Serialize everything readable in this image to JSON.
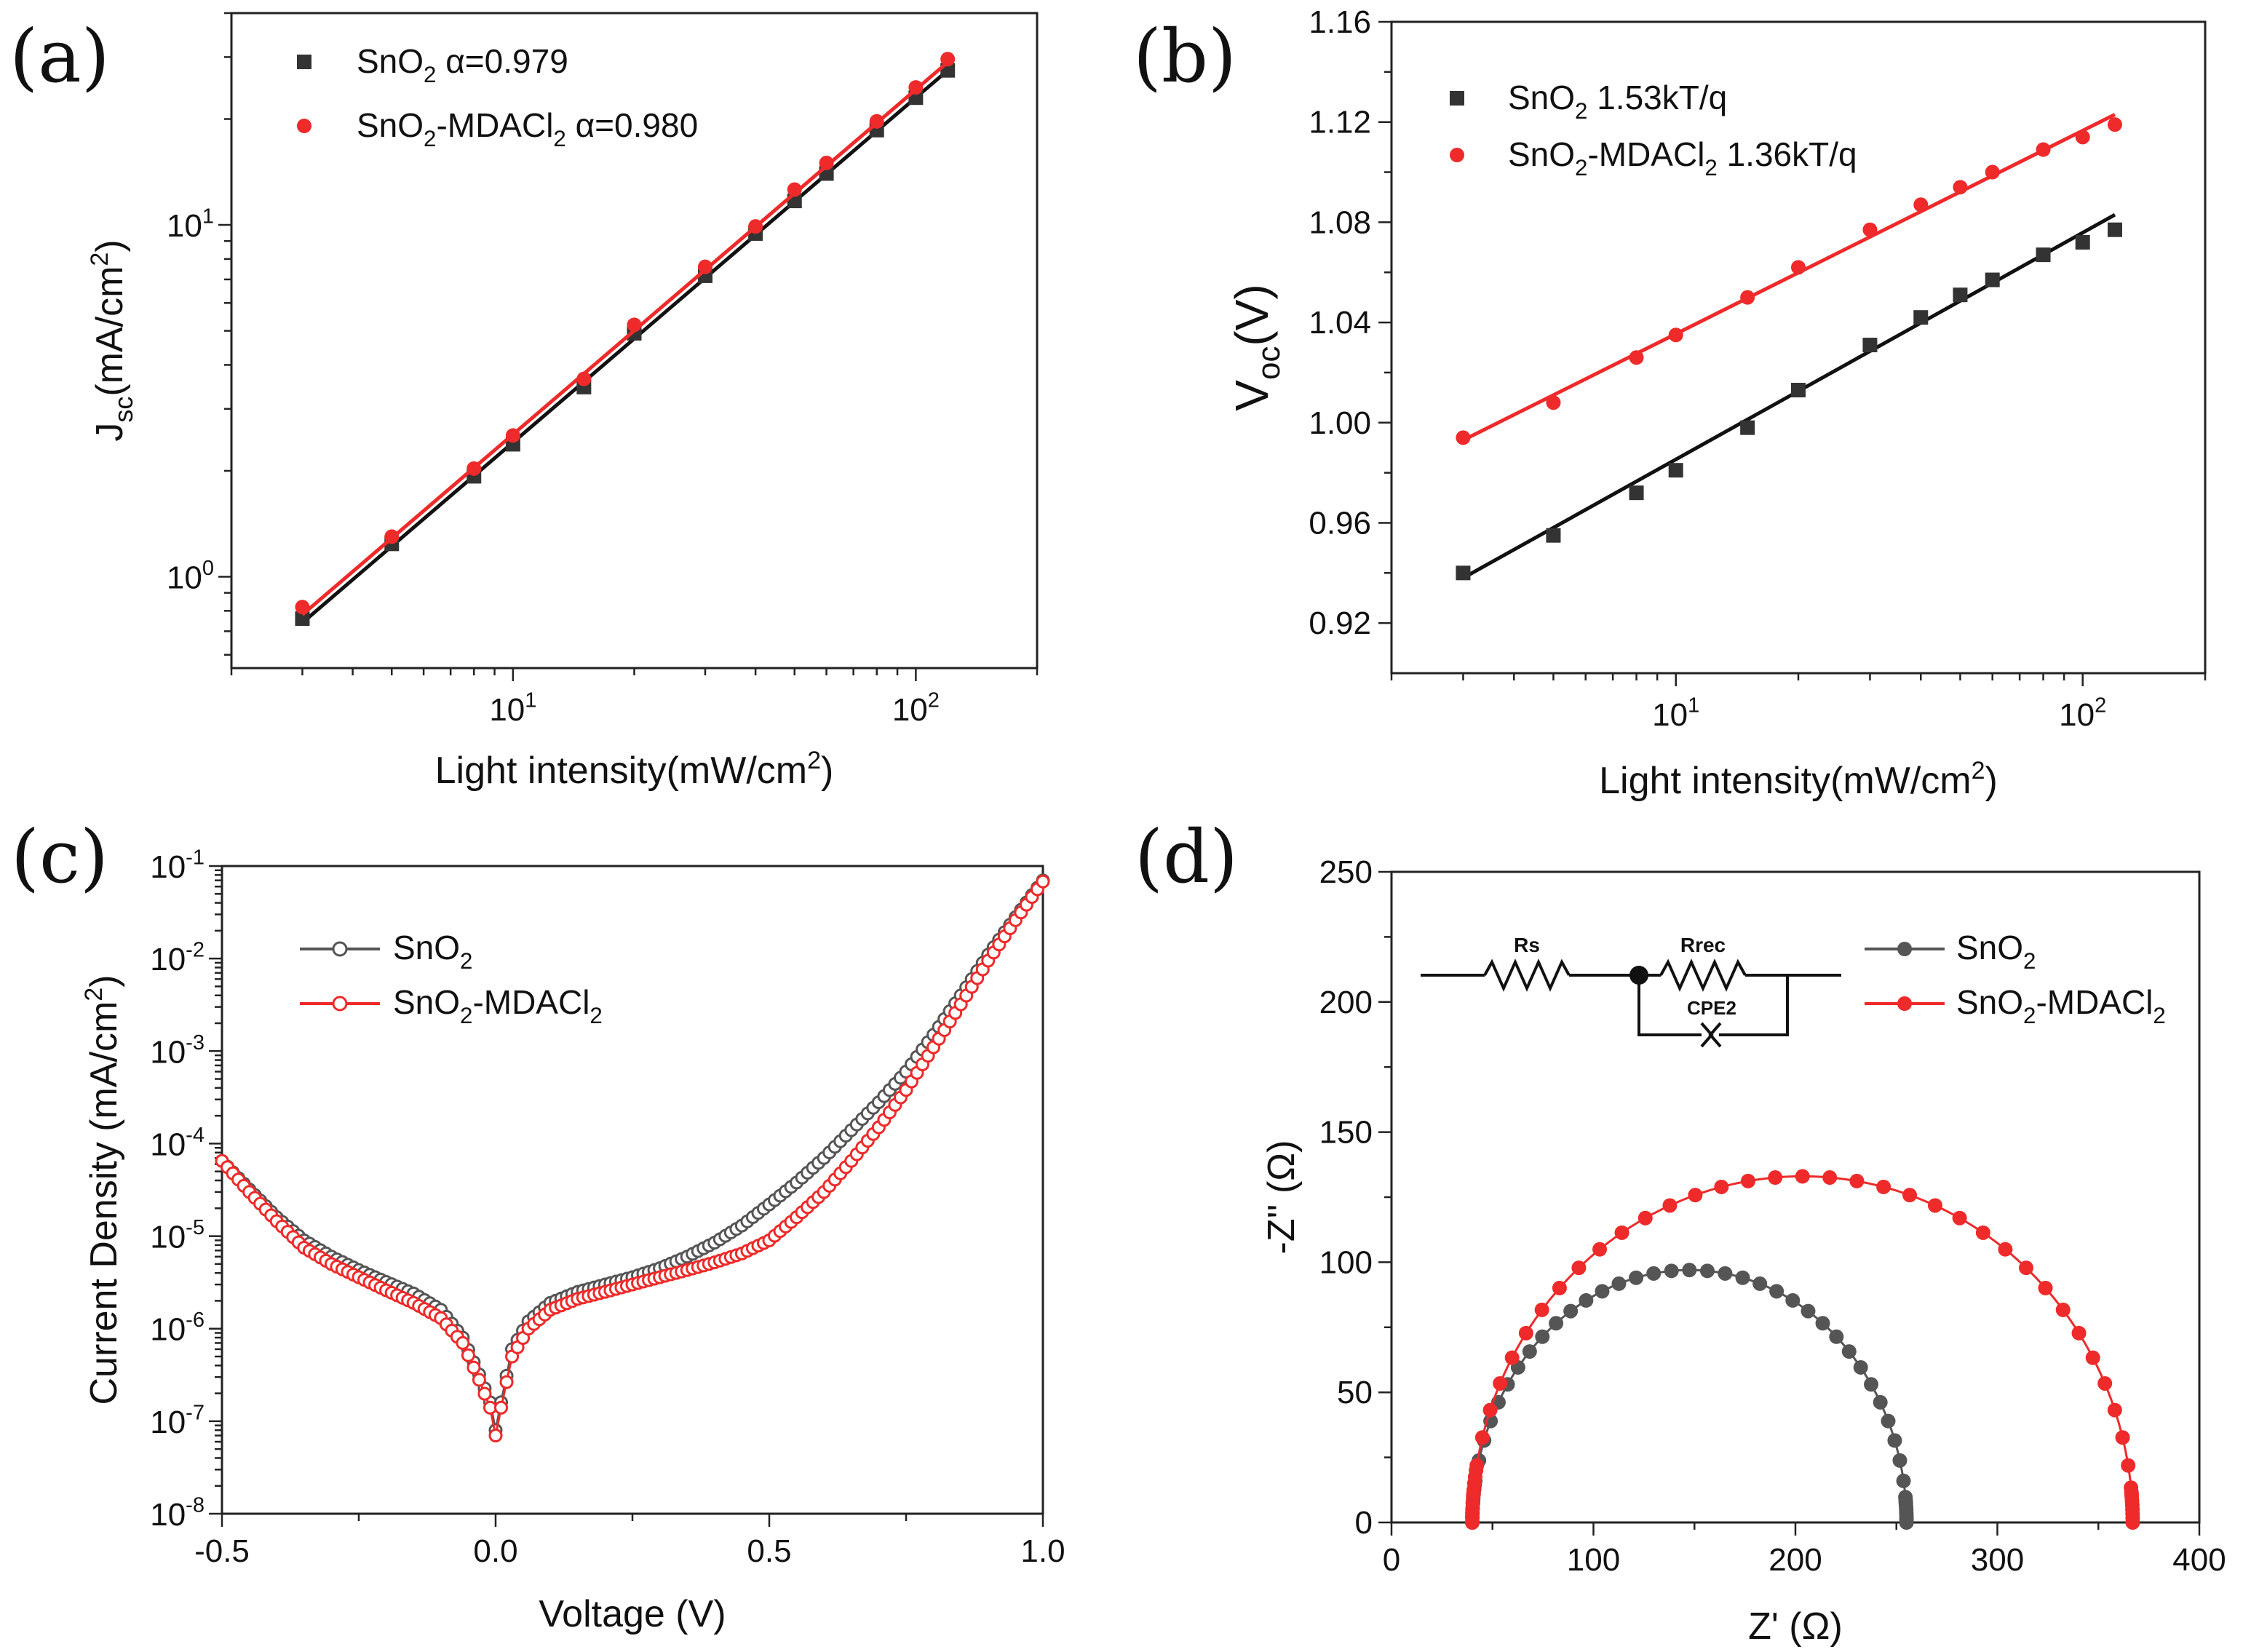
{
  "chart_data": [
    {
      "panel": "(a)",
      "type": "scatter",
      "xscale": "log",
      "yscale": "log",
      "xlabel": "Light intensity(mW/cm",
      "xlabel_sup": "2",
      "xlabel_end": ")",
      "ylabel": "J",
      "ylabel_sub": "sc",
      "ylabel_mid": "(mA/cm",
      "ylabel_sup": "2",
      "ylabel_end": ")",
      "xlim": [
        2,
        200
      ],
      "ylim": [
        0.55,
        40
      ],
      "xticks": [
        {
          "base": "10",
          "exp": "1",
          "value": 10
        },
        {
          "base": "10",
          "exp": "2",
          "value": 100
        }
      ],
      "yticks": [
        {
          "base": "10",
          "exp": "0",
          "value": 1
        },
        {
          "base": "10",
          "exp": "1",
          "value": 10
        }
      ],
      "series": [
        {
          "name": "SnO",
          "name_sub": "2",
          "name_tail": " α=0.979",
          "color": "#333333",
          "marker": "square",
          "x": [
            3,
            5,
            8,
            10,
            15,
            20,
            30,
            40,
            50,
            60,
            80,
            100,
            120
          ],
          "y": [
            0.76,
            1.24,
            1.93,
            2.38,
            3.46,
            4.92,
            7.17,
            9.45,
            11.7,
            14.0,
            18.6,
            23.0,
            27.5
          ],
          "fit": [
            [
              3,
              0.74
            ],
            [
              120,
              27.5
            ]
          ]
        },
        {
          "name": "SnO",
          "name_sub": "2",
          "name_tail": "-MDACl",
          "name_sub2": "2",
          "name_tail2": " α=0.980",
          "color": "#ee2a2a",
          "marker": "circle",
          "x": [
            3,
            5,
            8,
            10,
            15,
            20,
            30,
            40,
            50,
            60,
            80,
            100,
            120
          ],
          "y": [
            0.82,
            1.3,
            2.03,
            2.52,
            3.65,
            5.2,
            7.6,
            9.9,
            12.6,
            15.0,
            19.7,
            24.6,
            29.6
          ],
          "fit": [
            [
              3,
              0.78
            ],
            [
              120,
              29.0
            ]
          ]
        }
      ]
    },
    {
      "panel": "(b)",
      "type": "scatter",
      "xscale": "log",
      "yscale": "linear",
      "xlabel": "Light intensity(mW/cm",
      "xlabel_sup": "2",
      "xlabel_end": ")",
      "ylabel": "V",
      "ylabel_sub": "oc",
      "ylabel_end": "(V)",
      "xlim": [
        2,
        200
      ],
      "ylim": [
        0.9,
        1.16
      ],
      "xticks": [
        {
          "base": "10",
          "exp": "1",
          "value": 10
        },
        {
          "base": "10",
          "exp": "2",
          "value": 100
        }
      ],
      "yticks": [
        "0.92",
        "0.96",
        "1.00",
        "1.04",
        "1.08",
        "1.12",
        "1.16"
      ],
      "series": [
        {
          "name": "SnO",
          "name_sub": "2",
          "name_tail": " 1.53kT/q",
          "color": "#333333",
          "marker": "square",
          "x": [
            3,
            5,
            8,
            10,
            15,
            20,
            30,
            40,
            50,
            60,
            80,
            100,
            120
          ],
          "y": [
            0.94,
            0.955,
            0.972,
            0.981,
            0.998,
            1.013,
            1.031,
            1.042,
            1.051,
            1.057,
            1.067,
            1.072,
            1.077
          ],
          "fit": [
            [
              3,
              0.938
            ],
            [
              120,
              1.083
            ]
          ]
        },
        {
          "name": "SnO",
          "name_sub": "2",
          "name_tail": "-MDACl",
          "name_sub2": "2",
          "name_tail2": " 1.36kT/q",
          "color": "#ee2a2a",
          "marker": "circle",
          "x": [
            3,
            5,
            8,
            10,
            15,
            20,
            30,
            40,
            50,
            60,
            80,
            100,
            120
          ],
          "y": [
            0.994,
            1.008,
            1.026,
            1.035,
            1.05,
            1.062,
            1.077,
            1.087,
            1.094,
            1.1,
            1.109,
            1.114,
            1.119
          ],
          "fit": [
            [
              3,
              0.993
            ],
            [
              120,
              1.123
            ]
          ]
        }
      ]
    },
    {
      "panel": "(c)",
      "type": "line",
      "xscale": "linear",
      "yscale": "log",
      "xlabel": "Voltage (V)",
      "ylabel": "Current Density (mA/cm",
      "ylabel_sup": "2",
      "ylabel_end": ")",
      "xlim": [
        -0.5,
        1.0
      ],
      "ylim": [
        1e-08,
        0.1
      ],
      "xticks": [
        "-0.5",
        "0.0",
        "0.5",
        "1.0"
      ],
      "yticks": [
        {
          "base": "10",
          "exp": "-8",
          "value": 1e-08
        },
        {
          "base": "10",
          "exp": "-7",
          "value": 1e-07
        },
        {
          "base": "10",
          "exp": "-6",
          "value": 1e-06
        },
        {
          "base": "10",
          "exp": "-5",
          "value": 1e-05
        },
        {
          "base": "10",
          "exp": "-4",
          "value": 0.0001
        },
        {
          "base": "10",
          "exp": "-3",
          "value": 0.001
        },
        {
          "base": "10",
          "exp": "-2",
          "value": 0.01
        },
        {
          "base": "10",
          "exp": "-1",
          "value": 0.1
        }
      ],
      "series": [
        {
          "name": "SnO",
          "name_sub": "2",
          "color": "#555555",
          "marker": "circle-open",
          "x": [
            -0.5,
            -0.45,
            -0.4,
            -0.35,
            -0.3,
            -0.25,
            -0.2,
            -0.15,
            -0.1,
            -0.06,
            -0.03,
            -0.01,
            0.0,
            0.01,
            0.03,
            0.06,
            0.1,
            0.15,
            0.2,
            0.25,
            0.3,
            0.35,
            0.4,
            0.45,
            0.5,
            0.55,
            0.6,
            0.65,
            0.7,
            0.75,
            0.8,
            0.85,
            0.9,
            0.95,
            1.0
          ],
          "y": [
            6.5e-05,
            3.2e-05,
            1.6e-05,
            9e-06,
            6e-06,
            4.3e-06,
            3.2e-06,
            2.4e-06,
            1.6e-06,
            8e-07,
            3.2e-07,
            1.6e-07,
            8e-08,
            1.6e-07,
            6e-07,
            1.2e-06,
            1.9e-06,
            2.5e-06,
            3e-06,
            3.6e-06,
            4.5e-06,
            6e-06,
            8.5e-06,
            1.3e-05,
            2.2e-05,
            3.8e-05,
            7e-05,
            0.00014,
            0.00028,
            0.0006,
            0.0015,
            0.004,
            0.011,
            0.028,
            0.07
          ]
        },
        {
          "name": "SnO",
          "name_sub": "2",
          "name_tail": "-MDACl",
          "name_sub2": "2",
          "color": "#ee2a2a",
          "marker": "circle-open",
          "x": [
            -0.5,
            -0.45,
            -0.4,
            -0.35,
            -0.3,
            -0.25,
            -0.2,
            -0.15,
            -0.1,
            -0.06,
            -0.03,
            -0.01,
            0.0,
            0.01,
            0.03,
            0.06,
            0.1,
            0.15,
            0.2,
            0.25,
            0.3,
            0.35,
            0.4,
            0.45,
            0.5,
            0.55,
            0.6,
            0.65,
            0.7,
            0.75,
            0.8,
            0.85,
            0.9,
            0.95,
            1.0
          ],
          "y": [
            6.5e-05,
            3e-05,
            1.45e-05,
            7.5e-06,
            5e-06,
            3.6e-06,
            2.6e-06,
            1.9e-06,
            1.3e-06,
            7e-07,
            2.8e-07,
            1.4e-07,
            7e-08,
            1.4e-07,
            5e-07,
            1e-06,
            1.6e-06,
            2.1e-06,
            2.5e-06,
            3e-06,
            3.6e-06,
            4.3e-06,
            5.2e-06,
            6.5e-06,
            9e-06,
            1.6e-05,
            3e-05,
            6.5e-05,
            0.00015,
            0.00038,
            0.0011,
            0.0032,
            0.0095,
            0.026,
            0.068
          ]
        }
      ]
    },
    {
      "panel": "(d)",
      "type": "scatter",
      "xscale": "linear",
      "yscale": "linear",
      "xlabel": "Z' (Ω)",
      "ylabel": "-Z'' (Ω)",
      "xlim": [
        0,
        400
      ],
      "ylim": [
        0,
        250
      ],
      "xticks": [
        "0",
        "100",
        "200",
        "300",
        "400"
      ],
      "yticks": [
        "0",
        "50",
        "100",
        "150",
        "200",
        "250"
      ],
      "circuit_labels": {
        "r1": "Rs",
        "r2": "Rrec",
        "cpe": "CPE2"
      },
      "series": [
        {
          "name": "SnO",
          "name_sub": "2",
          "color": "#555555",
          "marker": "circle",
          "semicircle": {
            "x_start": 40,
            "x_end": 255,
            "peak": 97
          }
        },
        {
          "name": "SnO",
          "name_sub": "2",
          "name_tail": "-MDACl",
          "name_sub2": "2",
          "color": "#ee2a2a",
          "marker": "circle",
          "semicircle": {
            "x_start": 40,
            "x_end": 367,
            "peak": 133
          }
        }
      ]
    }
  ]
}
